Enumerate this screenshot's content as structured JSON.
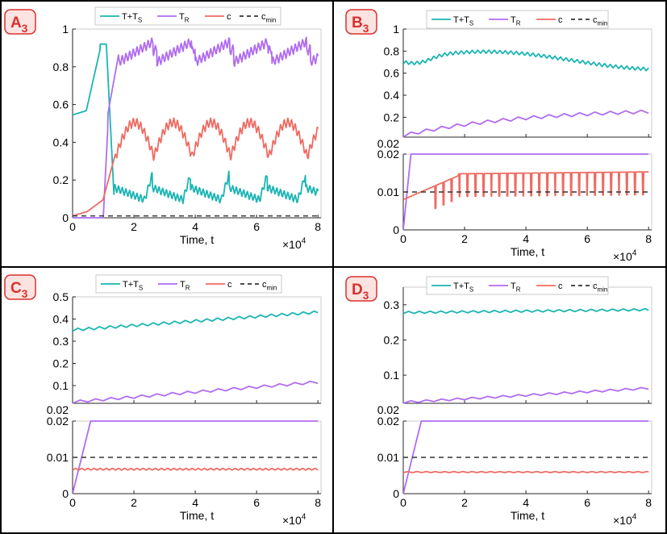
{
  "colors": {
    "tts": "#1ab5b3",
    "tr": "#b06cf0",
    "c": "#ee6b62",
    "cmin": "#333333",
    "badge_fill": "#fbe3e1",
    "badge_stroke": "#d9302c",
    "badge_text": "#d9302c",
    "frame": "#000000",
    "axis": "#262626"
  },
  "legend": {
    "tts": {
      "main": "T+T",
      "sub": "S"
    },
    "tr": {
      "main": "T",
      "sub": "R"
    },
    "c": {
      "main": "c",
      "sub": ""
    },
    "cmin": {
      "main": "c",
      "sub": "min"
    }
  },
  "x_axis": {
    "label": "Time, t",
    "multiplier": {
      "base": "×10",
      "exp": "4"
    },
    "ticks": [
      "0",
      "2",
      "4",
      "6",
      "8"
    ],
    "range": [
      0,
      8.1
    ]
  },
  "chart_data": [
    {
      "type": "line",
      "panel": {
        "letter": "A",
        "sub": "3"
      },
      "subplots": [
        {
          "ylim": [
            0,
            1
          ],
          "yticks": [
            "0",
            "0.2",
            "0.4",
            "0.6",
            "0.8",
            "1"
          ],
          "series": [
            {
              "key": "tts",
              "name": "T+T_S",
              "pattern": "A_tts"
            },
            {
              "key": "tr",
              "name": "T_R",
              "pattern": "A_tr"
            },
            {
              "key": "c",
              "name": "c",
              "pattern": "A_c"
            },
            {
              "key": "cmin",
              "name": "c_min",
              "constant": 0.01,
              "dashed": true
            }
          ]
        }
      ]
    },
    {
      "type": "line",
      "panel": {
        "letter": "B",
        "sub": "3"
      },
      "subplots": [
        {
          "ylim": [
            0.02,
            1
          ],
          "yticks": [
            "0.2",
            "0.4",
            "0.6",
            "0.8",
            "1"
          ],
          "extra_bottom_tick": "0.02",
          "series": [
            {
              "key": "tts",
              "name": "T+T_S",
              "pattern": "B_tts"
            },
            {
              "key": "tr",
              "name": "T_R",
              "pattern": "B_tr"
            }
          ]
        },
        {
          "ylim": [
            0,
            0.02
          ],
          "yticks": [
            "0",
            "0.01",
            "0.02"
          ],
          "series": [
            {
              "key": "tr",
              "name": "T_R",
              "pattern": "B_tr_low"
            },
            {
              "key": "c",
              "name": "c",
              "pattern": "B_c"
            },
            {
              "key": "cmin",
              "name": "c_min",
              "constant": 0.01,
              "dashed": true
            }
          ]
        }
      ]
    },
    {
      "type": "line",
      "panel": {
        "letter": "C",
        "sub": "3"
      },
      "subplots": [
        {
          "ylim": [
            0.02,
            0.5
          ],
          "yticks": [
            "0.1",
            "0.2",
            "0.3",
            "0.4",
            "0.5"
          ],
          "extra_bottom_tick": "0.02",
          "series": [
            {
              "key": "tts",
              "name": "T+T_S",
              "pattern": "C_tts"
            },
            {
              "key": "tr",
              "name": "T_R",
              "pattern": "C_tr"
            }
          ]
        },
        {
          "ylim": [
            0,
            0.02
          ],
          "yticks": [
            "0",
            "0.01",
            "0.02"
          ],
          "series": [
            {
              "key": "tr",
              "name": "T_R",
              "pattern": "CD_tr_low"
            },
            {
              "key": "c",
              "name": "c",
              "pattern": "C_c"
            },
            {
              "key": "cmin",
              "name": "c_min",
              "constant": 0.01,
              "dashed": true
            }
          ]
        }
      ]
    },
    {
      "type": "line",
      "panel": {
        "letter": "D",
        "sub": "3"
      },
      "subplots": [
        {
          "ylim": [
            0.02,
            0.35
          ],
          "yticks": [
            "0.1",
            "0.2",
            "0.3"
          ],
          "extra_bottom_tick": "0.02",
          "series": [
            {
              "key": "tts",
              "name": "T+T_S",
              "pattern": "D_tts"
            },
            {
              "key": "tr",
              "name": "T_R",
              "pattern": "D_tr"
            }
          ]
        },
        {
          "ylim": [
            0,
            0.02
          ],
          "yticks": [
            "0",
            "0.01",
            "0.02"
          ],
          "series": [
            {
              "key": "tr",
              "name": "T_R",
              "pattern": "CD_tr_low"
            },
            {
              "key": "c",
              "name": "c",
              "pattern": "D_c"
            },
            {
              "key": "cmin",
              "name": "c_min",
              "constant": 0.01,
              "dashed": true
            }
          ]
        }
      ]
    }
  ]
}
